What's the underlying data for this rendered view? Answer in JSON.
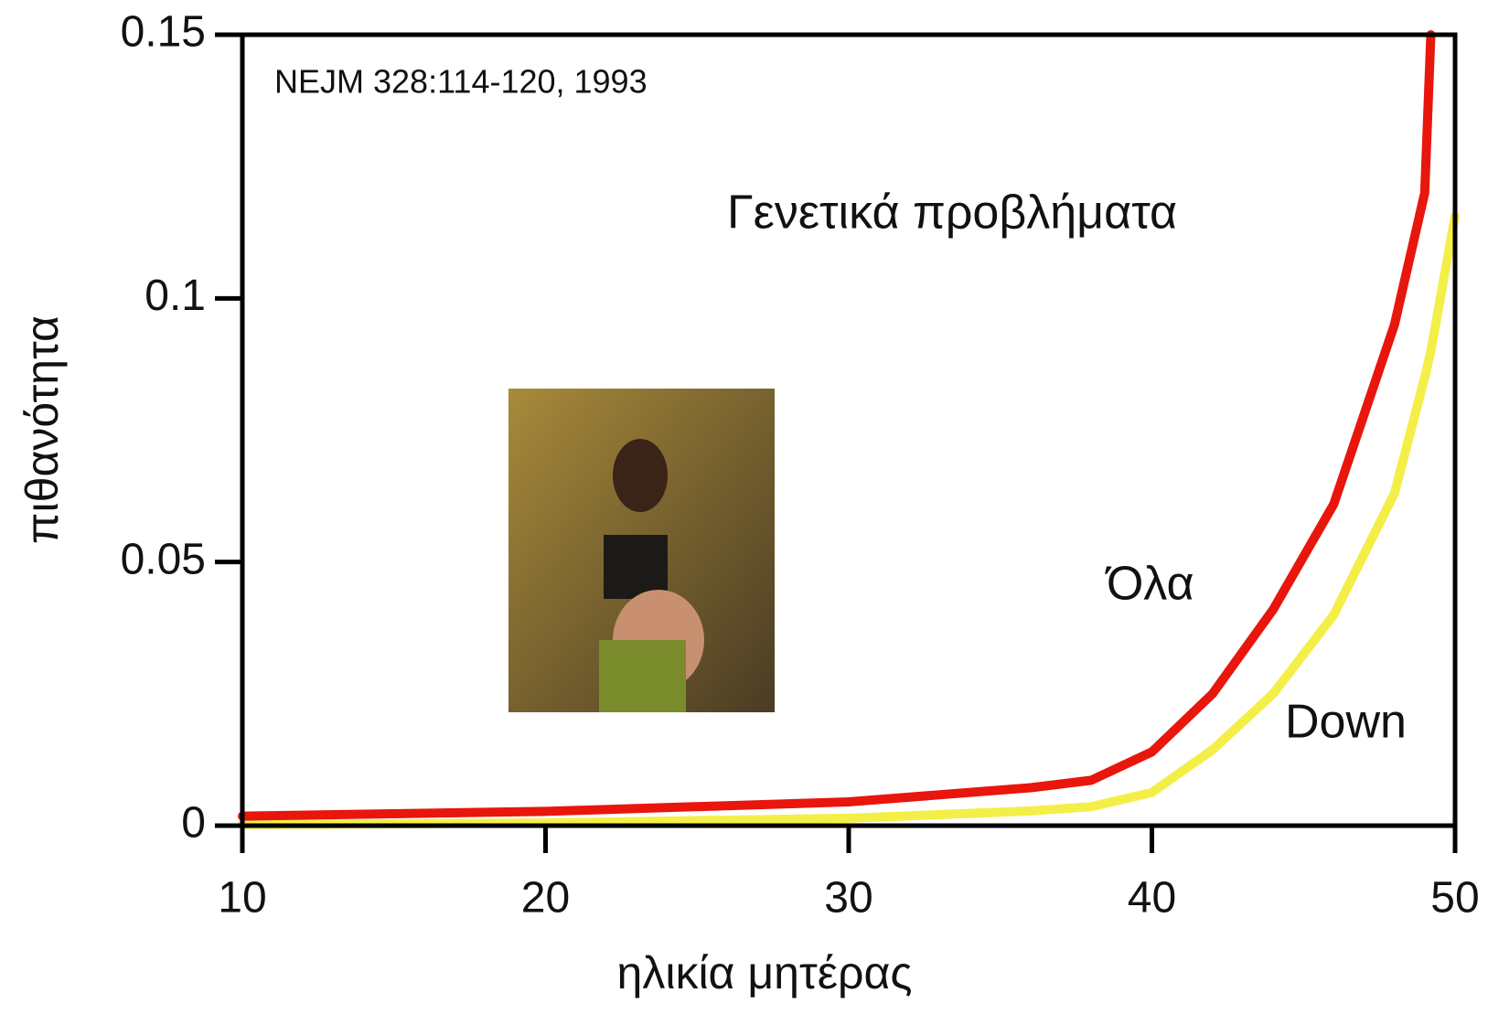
{
  "chart_data": {
    "type": "line",
    "source": "NEJM 328:114-120, 1993",
    "annotation": "Γενετικά προβλήματα",
    "x_label": "ηλικία μητέρας",
    "y_label": "πιθανότητα",
    "x": [
      10,
      20,
      30,
      36,
      38,
      40,
      42,
      44,
      46,
      48,
      49,
      49.2,
      50
    ],
    "series": [
      {
        "name": "Όλα",
        "color": "#e8160c",
        "values": [
          0.0018,
          0.0027,
          0.0045,
          0.0072,
          0.0086,
          0.014,
          0.025,
          0.041,
          0.061,
          0.095,
          0.12,
          0.15,
          null
        ]
      },
      {
        "name": "Down",
        "color": "#f4ef48",
        "values": [
          0.0002,
          0.0005,
          0.0014,
          0.0028,
          0.0036,
          0.0063,
          0.0144,
          0.025,
          0.04,
          0.063,
          0.085,
          0.09,
          0.1156
        ]
      }
    ],
    "xlim": [
      10,
      50
    ],
    "xticks": [
      10,
      20,
      30,
      40,
      50
    ],
    "ylim": [
      0,
      0.15
    ],
    "yticks": [
      0,
      0.05,
      0.1,
      0.15
    ]
  }
}
